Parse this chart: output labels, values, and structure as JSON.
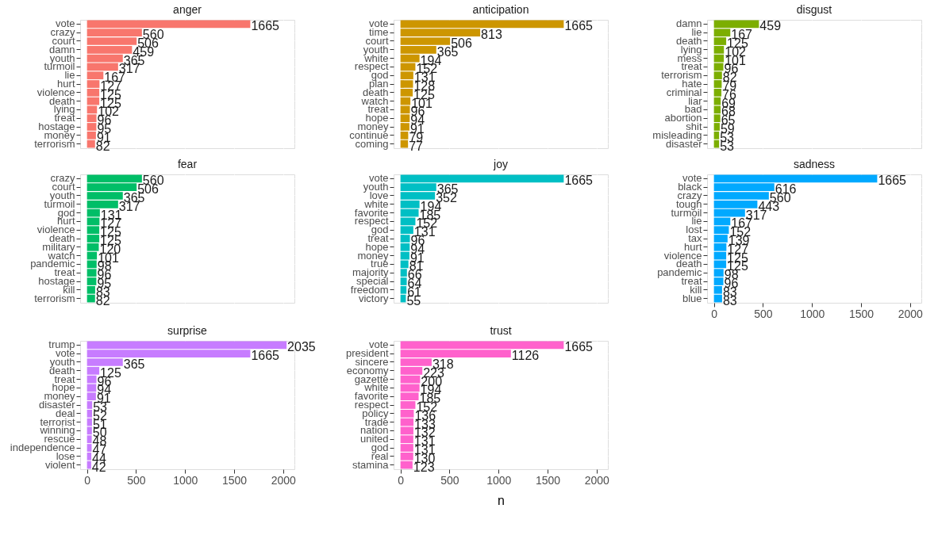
{
  "chart_data": [
    {
      "type": "bar",
      "orientation": "horizontal",
      "title": "anger",
      "categories": [
        "vote",
        "crazy",
        "court",
        "damn",
        "youth",
        "turmoil",
        "lie",
        "hurt",
        "violence",
        "death",
        "lying",
        "treat",
        "hostage",
        "money",
        "terrorism"
      ],
      "values": [
        1665,
        560,
        506,
        459,
        365,
        317,
        167,
        127,
        125,
        125,
        102,
        96,
        95,
        91,
        82
      ],
      "color": "#f8766d",
      "data_labels": true,
      "xlim": [
        -70,
        2115
      ],
      "xticks": [
        0,
        500,
        1000,
        1500,
        2000
      ],
      "grid": true,
      "tick_labels": "y"
    },
    {
      "type": "bar",
      "orientation": "horizontal",
      "title": "anticipation",
      "categories": [
        "vote",
        "time",
        "court",
        "youth",
        "white",
        "respect",
        "god",
        "plan",
        "death",
        "watch",
        "treat",
        "hope",
        "money",
        "continue",
        "coming"
      ],
      "values": [
        1665,
        813,
        506,
        365,
        194,
        152,
        131,
        128,
        125,
        101,
        96,
        94,
        91,
        79,
        77
      ],
      "color": "#cd9600",
      "data_labels": true,
      "xlim": [
        -70,
        2115
      ],
      "xticks": [
        0,
        500,
        1000,
        1500,
        2000
      ],
      "grid": true,
      "tick_labels": "y"
    },
    {
      "type": "bar",
      "orientation": "horizontal",
      "title": "disgust",
      "categories": [
        "damn",
        "lie",
        "death",
        "lying",
        "mess",
        "treat",
        "terrorism",
        "hate",
        "criminal",
        "liar",
        "bad",
        "abortion",
        "shit",
        "misleading",
        "disaster"
      ],
      "values": [
        459,
        167,
        125,
        102,
        101,
        96,
        82,
        79,
        76,
        69,
        68,
        65,
        59,
        53,
        53
      ],
      "color": "#7cae00",
      "data_labels": true,
      "xlim": [
        -70,
        2115
      ],
      "xticks": [
        0,
        500,
        1000,
        1500,
        2000
      ],
      "grid": true,
      "tick_labels": "y"
    },
    {
      "type": "bar",
      "orientation": "horizontal",
      "title": "fear",
      "categories": [
        "crazy",
        "court",
        "youth",
        "turmoil",
        "god",
        "hurt",
        "violence",
        "death",
        "military",
        "watch",
        "pandemic",
        "treat",
        "hostage",
        "kill",
        "terrorism"
      ],
      "values": [
        560,
        506,
        365,
        317,
        131,
        127,
        125,
        125,
        120,
        101,
        98,
        96,
        95,
        83,
        82
      ],
      "color": "#00be67",
      "data_labels": true,
      "xlim": [
        -70,
        2115
      ],
      "xticks": [
        0,
        500,
        1000,
        1500,
        2000
      ],
      "grid": true,
      "tick_labels": "y"
    },
    {
      "type": "bar",
      "orientation": "horizontal",
      "title": "joy",
      "categories": [
        "vote",
        "youth",
        "love",
        "white",
        "favorite",
        "respect",
        "god",
        "treat",
        "hope",
        "money",
        "true",
        "majority",
        "special",
        "freedom",
        "victory"
      ],
      "values": [
        1665,
        365,
        352,
        194,
        185,
        152,
        131,
        96,
        94,
        91,
        81,
        66,
        64,
        61,
        55
      ],
      "color": "#00bfc4",
      "data_labels": true,
      "xlim": [
        -70,
        2115
      ],
      "xticks": [
        0,
        500,
        1000,
        1500,
        2000
      ],
      "grid": true,
      "tick_labels": "y"
    },
    {
      "type": "bar",
      "orientation": "horizontal",
      "title": "sadness",
      "categories": [
        "vote",
        "black",
        "crazy",
        "tough",
        "turmoil",
        "lie",
        "lost",
        "tax",
        "hurt",
        "violence",
        "death",
        "pandemic",
        "treat",
        "kill",
        "blue"
      ],
      "values": [
        1665,
        616,
        560,
        443,
        317,
        167,
        152,
        139,
        127,
        125,
        125,
        98,
        96,
        83,
        83
      ],
      "color": "#00a9ff",
      "data_labels": true,
      "xlim": [
        -70,
        2115
      ],
      "xticks": [
        0,
        500,
        1000,
        1500,
        2000
      ],
      "grid": true
    },
    {
      "type": "bar",
      "orientation": "horizontal",
      "title": "surprise",
      "categories": [
        "trump",
        "vote",
        "youth",
        "death",
        "treat",
        "hope",
        "money",
        "disaster",
        "deal",
        "terrorist",
        "winning",
        "rescue",
        "independence",
        "lose",
        "violent"
      ],
      "values": [
        2035,
        1665,
        365,
        125,
        96,
        94,
        91,
        53,
        52,
        51,
        50,
        48,
        47,
        44,
        42
      ],
      "color": "#c77cff",
      "data_labels": true,
      "xlim": [
        -70,
        2115
      ],
      "xticks": [
        0,
        500,
        1000,
        1500,
        2000
      ],
      "grid": true
    },
    {
      "type": "bar",
      "orientation": "horizontal",
      "title": "trust",
      "xlabel": "n",
      "categories": [
        "vote",
        "president",
        "sincere",
        "economy",
        "gazette",
        "white",
        "favorite",
        "respect",
        "policy",
        "trade",
        "nation",
        "united",
        "god",
        "real",
        "stamina"
      ],
      "values": [
        1665,
        1126,
        318,
        223,
        200,
        194,
        185,
        152,
        136,
        133,
        132,
        131,
        131,
        130,
        123
      ],
      "color": "#ff61cc",
      "data_labels": true,
      "xlim": [
        -70,
        2115
      ],
      "xticks": [
        0,
        500,
        1000,
        1500,
        2000
      ],
      "grid": true
    }
  ]
}
